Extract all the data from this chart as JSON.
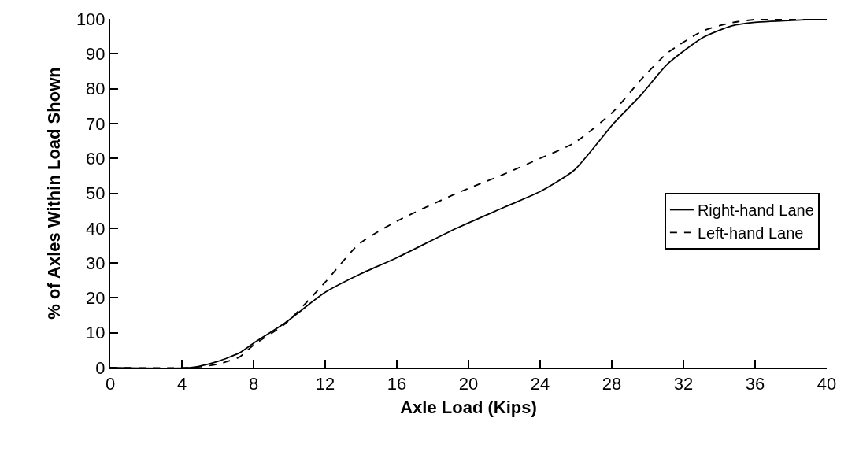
{
  "chart_data": {
    "type": "line",
    "xlabel": "Axle Load (Kips)",
    "ylabel": "% of Axles Within Load Shown",
    "x": [
      0,
      4.5,
      6,
      7.2,
      8,
      9.8,
      12,
      13.9,
      16,
      19.3,
      22,
      24,
      25.9,
      28.1,
      29.6,
      31.1,
      33.1,
      34.7,
      36,
      40
    ],
    "series": [
      {
        "name": "Right-hand Lane",
        "color": "#000000",
        "line_style": "solid",
        "values": [
          0,
          0,
          1.8,
          4.2,
          7,
          13,
          21.6,
          26.7,
          31.5,
          39.9,
          46,
          50.5,
          56.6,
          70,
          78,
          87,
          94.7,
          98,
          99,
          100
        ]
      },
      {
        "name": "Left-hand Lane",
        "color": "#000000",
        "line_style": "dashed",
        "values": [
          0,
          0,
          1,
          3,
          6.5,
          12.7,
          24.5,
          35.5,
          42,
          49.9,
          55.5,
          60,
          64.4,
          73.5,
          82.4,
          90.2,
          96.6,
          98.9,
          99.8,
          100
        ]
      }
    ],
    "xlim": [
      0,
      40
    ],
    "xticks": [
      0,
      4,
      8,
      12,
      16,
      20,
      24,
      28,
      32,
      36,
      40
    ],
    "ylim": [
      0,
      100
    ],
    "yticks": [
      0,
      10,
      20,
      30,
      40,
      50,
      60,
      70,
      80,
      90,
      100
    ],
    "grid": false,
    "legend": "right",
    "marker": "none"
  }
}
